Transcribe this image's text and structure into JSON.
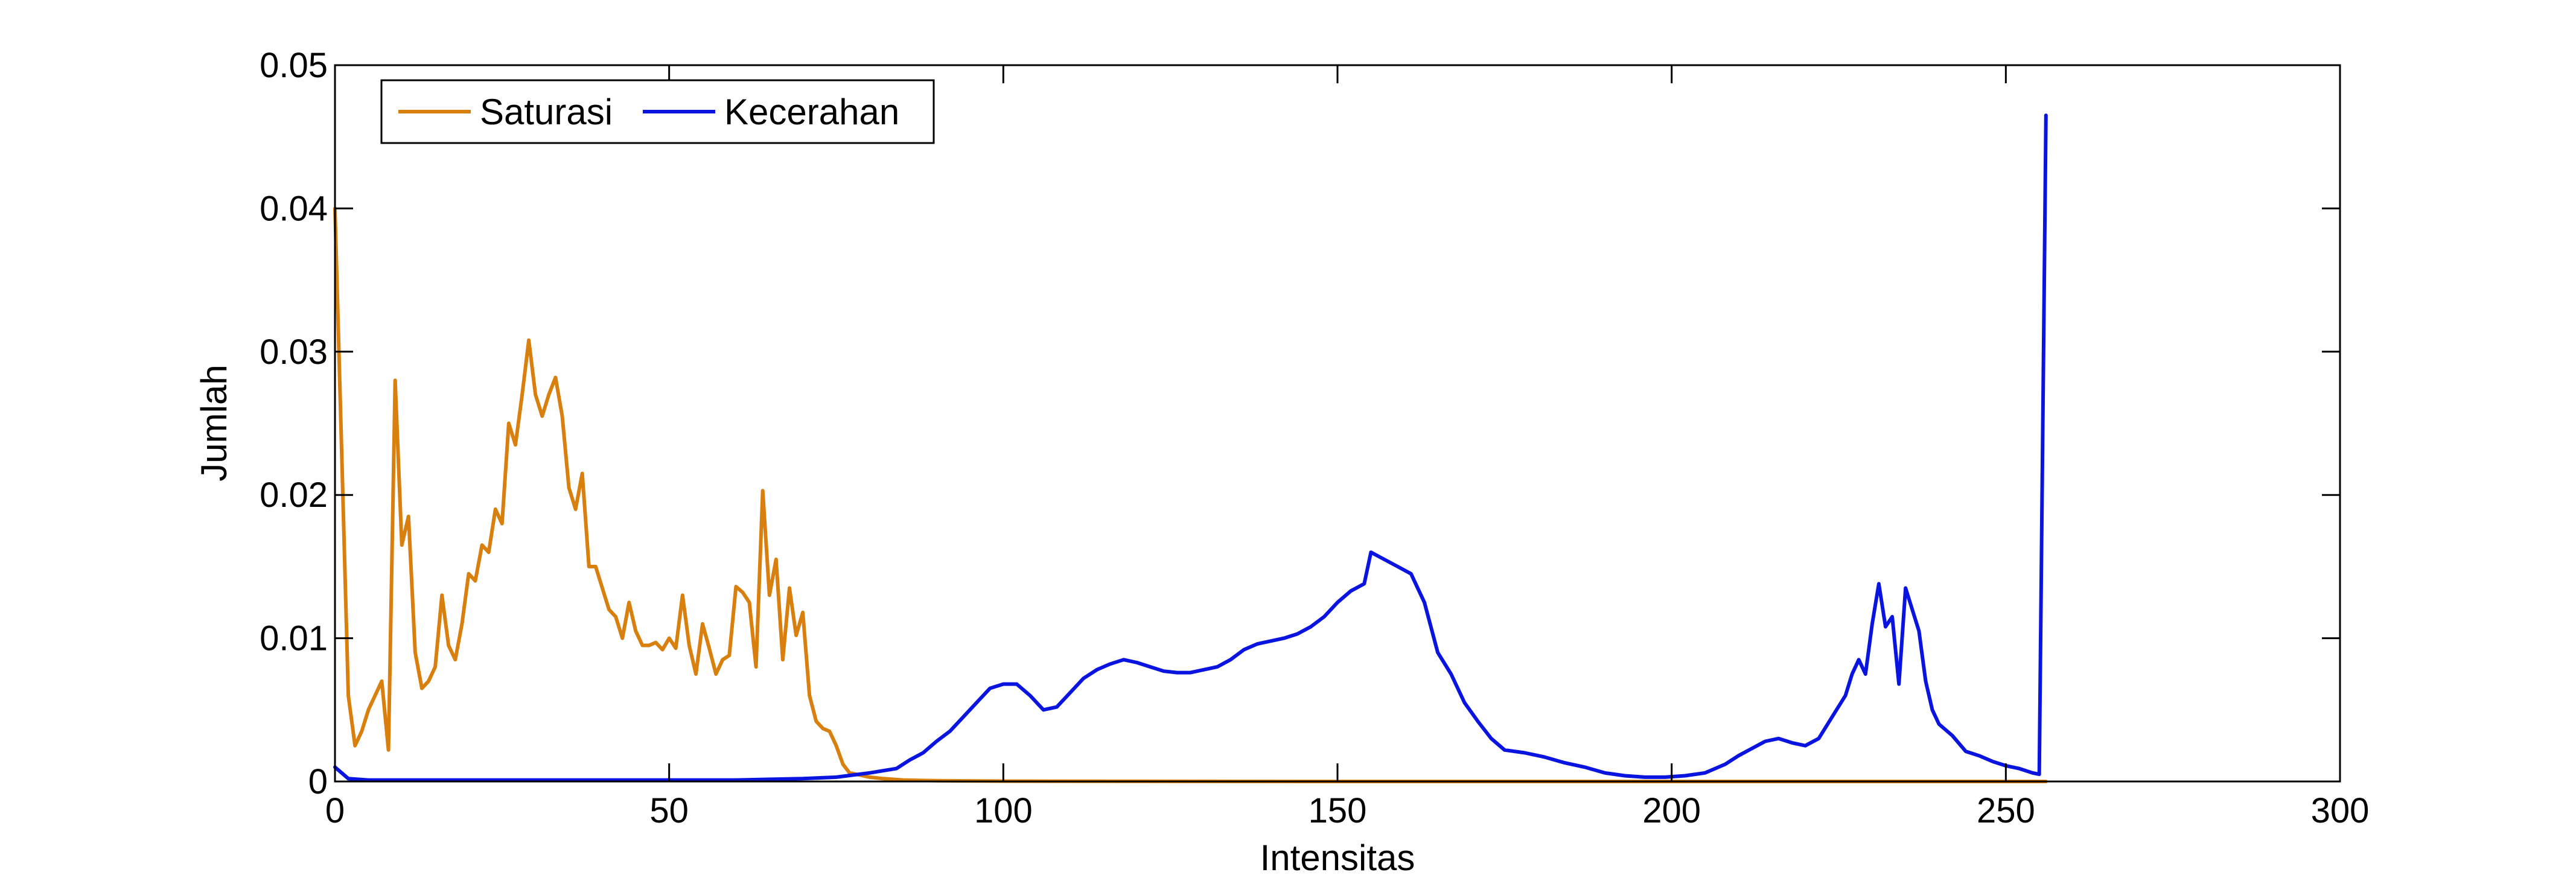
{
  "chart_data": {
    "type": "line",
    "title": "",
    "xlabel": "Intensitas",
    "ylabel": "Jumlah",
    "xlim": [
      0,
      300
    ],
    "ylim": [
      0,
      0.05
    ],
    "xticks": [
      0,
      50,
      100,
      150,
      200,
      250,
      300
    ],
    "yticks": [
      0,
      0.01,
      0.02,
      0.03,
      0.04,
      0.05
    ],
    "xtick_labels": [
      "0",
      "50",
      "100",
      "150",
      "200",
      "250",
      "300"
    ],
    "ytick_labels": [
      "0",
      "0.01",
      "0.02",
      "0.03",
      "0.04",
      "0.05"
    ],
    "grid": false,
    "legend": {
      "position": "top-left",
      "orientation": "horizontal"
    },
    "series": [
      {
        "name": "Saturasi",
        "color": "#d97f0e",
        "points": [
          [
            0,
            0.04
          ],
          [
            1,
            0.023
          ],
          [
            2,
            0.006
          ],
          [
            3,
            0.0025
          ],
          [
            4,
            0.0035
          ],
          [
            5,
            0.005
          ],
          [
            6,
            0.006
          ],
          [
            7,
            0.007
          ],
          [
            8,
            0.0022
          ],
          [
            9,
            0.028
          ],
          [
            10,
            0.0165
          ],
          [
            11,
            0.0185
          ],
          [
            12,
            0.009
          ],
          [
            13,
            0.0065
          ],
          [
            14,
            0.007
          ],
          [
            15,
            0.008
          ],
          [
            16,
            0.013
          ],
          [
            17,
            0.0095
          ],
          [
            18,
            0.0085
          ],
          [
            19,
            0.011
          ],
          [
            20,
            0.0145
          ],
          [
            21,
            0.014
          ],
          [
            22,
            0.0165
          ],
          [
            23,
            0.016
          ],
          [
            24,
            0.019
          ],
          [
            25,
            0.018
          ],
          [
            26,
            0.025
          ],
          [
            27,
            0.0235
          ],
          [
            28,
            0.027
          ],
          [
            29,
            0.0308
          ],
          [
            30,
            0.027
          ],
          [
            31,
            0.0255
          ],
          [
            32,
            0.027
          ],
          [
            33,
            0.0282
          ],
          [
            34,
            0.0255
          ],
          [
            35,
            0.0205
          ],
          [
            36,
            0.019
          ],
          [
            37,
            0.0215
          ],
          [
            38,
            0.015
          ],
          [
            39,
            0.015
          ],
          [
            40,
            0.0135
          ],
          [
            41,
            0.012
          ],
          [
            42,
            0.0115
          ],
          [
            43,
            0.01
          ],
          [
            44,
            0.0125
          ],
          [
            45,
            0.0105
          ],
          [
            46,
            0.0095
          ],
          [
            47,
            0.0095
          ],
          [
            48,
            0.0097
          ],
          [
            49,
            0.0092
          ],
          [
            50,
            0.01
          ],
          [
            51,
            0.0093
          ],
          [
            52,
            0.013
          ],
          [
            53,
            0.0095
          ],
          [
            54,
            0.0075
          ],
          [
            55,
            0.011
          ],
          [
            56,
            0.0093
          ],
          [
            57,
            0.0075
          ],
          [
            58,
            0.0085
          ],
          [
            59,
            0.0088
          ],
          [
            60,
            0.0136
          ],
          [
            61,
            0.0132
          ],
          [
            62,
            0.0125
          ],
          [
            63,
            0.008
          ],
          [
            64,
            0.0203
          ],
          [
            65,
            0.013
          ],
          [
            66,
            0.0155
          ],
          [
            67,
            0.0085
          ],
          [
            68,
            0.0135
          ],
          [
            69,
            0.0102
          ],
          [
            70,
            0.0118
          ],
          [
            71,
            0.006
          ],
          [
            72,
            0.0042
          ],
          [
            73,
            0.0037
          ],
          [
            74,
            0.0035
          ],
          [
            75,
            0.0025
          ],
          [
            76,
            0.0012
          ],
          [
            77,
            0.0006
          ],
          [
            78,
            0.0005
          ],
          [
            79,
            0.0004
          ],
          [
            80,
            0.0003
          ],
          [
            82,
            0.0002
          ],
          [
            85,
            0.0001
          ],
          [
            90,
            5e-05
          ],
          [
            100,
            2e-05
          ],
          [
            150,
            0.0
          ],
          [
            200,
            0.0
          ],
          [
            250,
            0.0
          ],
          [
            256,
            0.0
          ]
        ]
      },
      {
        "name": "Kecerahan",
        "color": "#0a14e0",
        "points": [
          [
            0,
            0.001
          ],
          [
            1,
            0.0006
          ],
          [
            2,
            0.0002
          ],
          [
            5,
            0.0001
          ],
          [
            10,
            0.0001
          ],
          [
            20,
            0.0001
          ],
          [
            30,
            0.0001
          ],
          [
            40,
            0.0001
          ],
          [
            50,
            0.0001
          ],
          [
            60,
            0.0001
          ],
          [
            70,
            0.0002
          ],
          [
            75,
            0.0003
          ],
          [
            80,
            0.0006
          ],
          [
            84,
            0.0009
          ],
          [
            86,
            0.0015
          ],
          [
            88,
            0.002
          ],
          [
            90,
            0.0028
          ],
          [
            92,
            0.0035
          ],
          [
            94,
            0.0045
          ],
          [
            96,
            0.0055
          ],
          [
            98,
            0.0065
          ],
          [
            100,
            0.0068
          ],
          [
            102,
            0.0068
          ],
          [
            104,
            0.006
          ],
          [
            106,
            0.005
          ],
          [
            108,
            0.0052
          ],
          [
            110,
            0.0062
          ],
          [
            112,
            0.0072
          ],
          [
            114,
            0.0078
          ],
          [
            116,
            0.0082
          ],
          [
            118,
            0.0085
          ],
          [
            120,
            0.0083
          ],
          [
            122,
            0.008
          ],
          [
            124,
            0.0077
          ],
          [
            126,
            0.0076
          ],
          [
            128,
            0.0076
          ],
          [
            130,
            0.0078
          ],
          [
            132,
            0.008
          ],
          [
            134,
            0.0085
          ],
          [
            136,
            0.0092
          ],
          [
            138,
            0.0096
          ],
          [
            140,
            0.0098
          ],
          [
            142,
            0.01
          ],
          [
            144,
            0.0103
          ],
          [
            146,
            0.0108
          ],
          [
            148,
            0.0115
          ],
          [
            150,
            0.0125
          ],
          [
            152,
            0.0133
          ],
          [
            154,
            0.0138
          ],
          [
            155,
            0.016
          ],
          [
            157,
            0.0155
          ],
          [
            159,
            0.015
          ],
          [
            161,
            0.0145
          ],
          [
            163,
            0.0125
          ],
          [
            165,
            0.009
          ],
          [
            167,
            0.0075
          ],
          [
            169,
            0.0055
          ],
          [
            171,
            0.0042
          ],
          [
            173,
            0.003
          ],
          [
            175,
            0.0022
          ],
          [
            178,
            0.002
          ],
          [
            181,
            0.0017
          ],
          [
            184,
            0.0013
          ],
          [
            187,
            0.001
          ],
          [
            190,
            0.0006
          ],
          [
            193,
            0.0004
          ],
          [
            196,
            0.0003
          ],
          [
            199,
            0.0003
          ],
          [
            202,
            0.0004
          ],
          [
            205,
            0.0006
          ],
          [
            208,
            0.0012
          ],
          [
            210,
            0.0018
          ],
          [
            212,
            0.0023
          ],
          [
            214,
            0.0028
          ],
          [
            216,
            0.003
          ],
          [
            218,
            0.0027
          ],
          [
            220,
            0.0025
          ],
          [
            222,
            0.003
          ],
          [
            224,
            0.0045
          ],
          [
            226,
            0.006
          ],
          [
            227,
            0.0075
          ],
          [
            228,
            0.0085
          ],
          [
            229,
            0.0075
          ],
          [
            230,
            0.011
          ],
          [
            231,
            0.0138
          ],
          [
            232,
            0.0108
          ],
          [
            233,
            0.0115
          ],
          [
            234,
            0.0068
          ],
          [
            235,
            0.0135
          ],
          [
            236,
            0.012
          ],
          [
            237,
            0.0105
          ],
          [
            238,
            0.007
          ],
          [
            239,
            0.005
          ],
          [
            240,
            0.004
          ],
          [
            242,
            0.0032
          ],
          [
            244,
            0.0021
          ],
          [
            246,
            0.0018
          ],
          [
            248,
            0.0014
          ],
          [
            250,
            0.0011
          ],
          [
            252,
            0.0009
          ],
          [
            254,
            0.0006
          ],
          [
            255,
            0.0005
          ],
          [
            256,
            0.0465
          ]
        ]
      }
    ]
  }
}
